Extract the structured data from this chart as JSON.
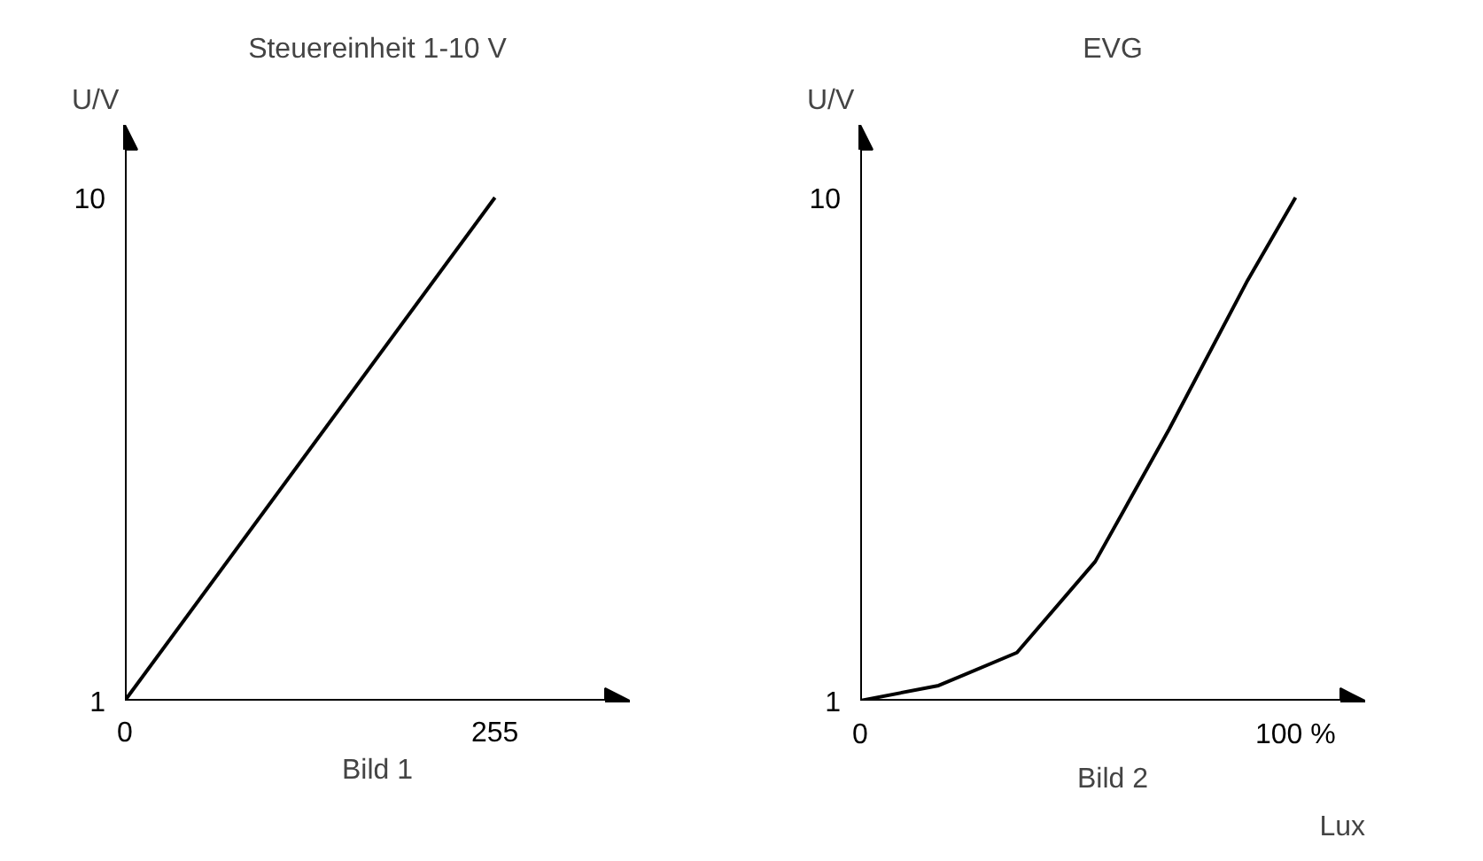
{
  "chart_data": [
    {
      "type": "line",
      "title": "Steuereinheit 1-10 V",
      "ylabel": "U/V",
      "annotations": [
        "Bild 1"
      ],
      "x": [
        0,
        255
      ],
      "values": [
        1,
        10
      ],
      "color": "#000000",
      "xlim": [
        0,
        348
      ],
      "ylim": [
        1,
        11.3
      ],
      "xticks": [
        0,
        255
      ],
      "yticks": [
        1,
        10
      ]
    },
    {
      "type": "line",
      "title": "EVG",
      "ylabel": "U/V",
      "xlabel": "Lux",
      "annotations": [
        "Bild 2"
      ],
      "x": [
        0,
        18,
        36,
        54,
        71,
        89,
        100
      ],
      "values": [
        1,
        1.27,
        1.86,
        3.49,
        5.86,
        8.52,
        10
      ],
      "color": "#000000",
      "xlim": [
        0,
        116
      ],
      "ylim": [
        1,
        11.3
      ],
      "xticks": [
        0,
        {
          "value": 100,
          "label": "100 %"
        }
      ],
      "yticks": [
        1,
        10
      ]
    }
  ]
}
